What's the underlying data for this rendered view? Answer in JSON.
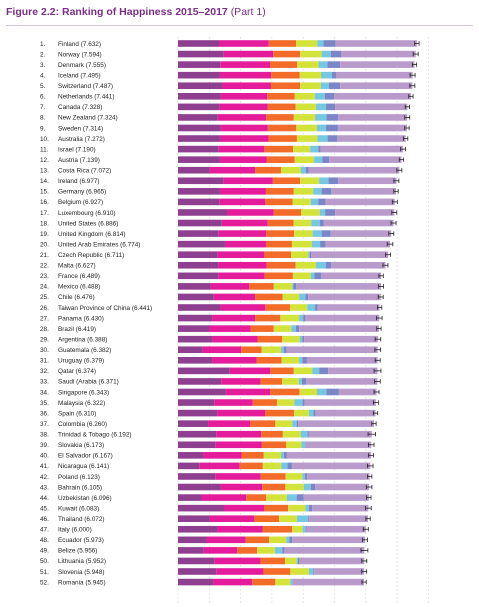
{
  "header": {
    "title": "Figure 2.2: Ranking of Happiness 2015–2017",
    "part": "(Part 1)"
  },
  "colors": {
    "title": "#7a2e85",
    "dystopia_residual": "#b89acb",
    "gdp": "#8e3f8f",
    "social_support": "#e41b9a",
    "life_expectancy": "#f26b29",
    "freedom": "#d3e33a",
    "generosity": "#74c8e4",
    "corruption": "#7b86c6",
    "error_bar": "#222222"
  },
  "chart_data": {
    "type": "bar",
    "orientation": "horizontal",
    "stacked": true,
    "title": "Figure 2.2: Ranking of Happiness 2015–2017",
    "categories": [
      "1. Finland (7.632)",
      "2. Norway (7.594)",
      "3. Denmark (7.555)",
      "4. Iceland (7.495)",
      "5. Switzerland (7.487)",
      "6. Netherlands (7.441)",
      "7. Canada (7.328)",
      "8. New Zealand (7.324)",
      "9. Sweden (7.314)",
      "10. Australia (7.272)",
      "11. Israel (7.190)",
      "12. Austria (7.139)",
      "13. Costa Rica (7.072)",
      "14. Ireland (6.977)",
      "15. Germany (6.965)",
      "16. Belgium (6.927)",
      "17. Luxembourg (6.910)",
      "18. United States (6.886)",
      "19. United Kingdom (6.814)",
      "20. United Arab Emirates (6.774)",
      "21. Czech Republic (6.711)",
      "22. Malta (6.627)",
      "23. France (6.489)",
      "24. Mexico (6.488)",
      "25. Chile (6.476)",
      "26. Taiwan Province of China (6.441)",
      "27. Panama (6.430)",
      "28. Brazil (6.419)",
      "29. Argentina (6.388)",
      "30. Guatemala (6.382)",
      "31. Uruguay (6.379)",
      "32. Qatar (6.374)",
      "33. Saudi (Arabia (6.371)",
      "34. Singapore (6.343)",
      "35. Malaysia (6.322)",
      "36. Spain (6.310)",
      "37. Colombia (6.260)",
      "38. Trinidad & Tobago (6.192)",
      "39. Slovakia (6.173)",
      "40. El Salvador (6.167)",
      "41. Nicaragua (6.141)",
      "42. Poland (6.123)",
      "43. Bahrain (6.105)",
      "44. Uzbekistan (6.096)",
      "45. Kuwait (6.083)",
      "46. Thailand (6.072)",
      "47. Italy (6.000)",
      "48. Ecuador (5.973)",
      "49. Belize (5.956)",
      "50. Lithuania (5.952)",
      "51. Slovenia (5.948)",
      "52. Romania (5.945)"
    ],
    "scores": [
      7.632,
      7.594,
      7.555,
      7.495,
      7.487,
      7.441,
      7.328,
      7.324,
      7.314,
      7.272,
      7.19,
      7.139,
      7.072,
      6.977,
      6.965,
      6.927,
      6.91,
      6.886,
      6.814,
      6.774,
      6.711,
      6.627,
      6.489,
      6.488,
      6.476,
      6.441,
      6.43,
      6.419,
      6.388,
      6.382,
      6.379,
      6.374,
      6.371,
      6.343,
      6.322,
      6.31,
      6.26,
      6.192,
      6.173,
      6.167,
      6.141,
      6.123,
      6.105,
      6.096,
      6.083,
      6.072,
      6.0,
      5.973,
      5.956,
      5.952,
      5.948,
      5.945
    ],
    "series": [
      {
        "key": "gdp",
        "values": [
          1.31,
          1.46,
          1.35,
          1.34,
          1.42,
          1.36,
          1.33,
          1.27,
          1.36,
          1.34,
          1.3,
          1.34,
          1.01,
          1.45,
          1.34,
          1.32,
          1.58,
          1.4,
          1.3,
          1.5,
          1.27,
          1.29,
          1.29,
          1.04,
          1.14,
          1.36,
          1.1,
          0.99,
          1.1,
          0.78,
          1.1,
          1.65,
          1.38,
          1.53,
          1.16,
          1.25,
          0.96,
          1.22,
          1.19,
          0.8,
          0.68,
          1.19,
          1.36,
          0.75,
          1.47,
          1.02,
          1.26,
          0.91,
          0.81,
          1.16,
          1.22,
          1.12
        ]
      },
      {
        "key": "social_support",
        "values": [
          1.59,
          1.58,
          1.59,
          1.64,
          1.55,
          1.49,
          1.53,
          1.55,
          1.51,
          1.55,
          1.46,
          1.5,
          1.46,
          1.58,
          1.47,
          1.47,
          1.48,
          1.47,
          1.52,
          1.31,
          1.49,
          1.54,
          1.48,
          1.23,
          1.33,
          1.43,
          1.37,
          1.33,
          1.44,
          1.24,
          1.41,
          1.3,
          1.26,
          1.41,
          1.23,
          1.53,
          1.35,
          1.44,
          1.49,
          1.23,
          1.29,
          1.45,
          1.33,
          1.43,
          1.29,
          1.42,
          1.44,
          1.25,
          1.08,
          1.48,
          1.51,
          1.25
        ]
      },
      {
        "key": "life_expectancy",
        "values": [
          0.87,
          0.86,
          0.87,
          0.91,
          0.93,
          0.88,
          0.9,
          0.88,
          0.91,
          0.91,
          0.92,
          0.89,
          0.82,
          0.87,
          0.89,
          0.87,
          0.87,
          0.82,
          0.89,
          0.83,
          0.85,
          0.93,
          0.9,
          0.79,
          0.87,
          0.79,
          0.8,
          0.74,
          0.79,
          0.65,
          0.8,
          0.75,
          0.69,
          0.94,
          0.78,
          0.93,
          0.8,
          0.69,
          0.78,
          0.71,
          0.74,
          0.8,
          0.74,
          0.64,
          0.76,
          0.79,
          0.95,
          0.75,
          0.64,
          0.78,
          0.86,
          0.74
        ]
      },
      {
        "key": "freedom",
        "values": [
          0.68,
          0.69,
          0.68,
          0.68,
          0.66,
          0.64,
          0.65,
          0.68,
          0.66,
          0.65,
          0.54,
          0.62,
          0.63,
          0.61,
          0.62,
          0.58,
          0.6,
          0.57,
          0.59,
          0.64,
          0.55,
          0.65,
          0.57,
          0.59,
          0.53,
          0.55,
          0.6,
          0.56,
          0.56,
          0.62,
          0.56,
          0.59,
          0.53,
          0.56,
          0.55,
          0.47,
          0.54,
          0.57,
          0.48,
          0.55,
          0.59,
          0.53,
          0.59,
          0.66,
          0.55,
          0.57,
          0.33,
          0.55,
          0.57,
          0.37,
          0.59,
          0.48
        ]
      },
      {
        "key": "generosity",
        "values": [
          0.2,
          0.29,
          0.28,
          0.35,
          0.26,
          0.32,
          0.32,
          0.36,
          0.29,
          0.33,
          0.26,
          0.26,
          0.16,
          0.3,
          0.27,
          0.24,
          0.17,
          0.27,
          0.29,
          0.26,
          0.05,
          0.31,
          0.12,
          0.04,
          0.2,
          0.25,
          0.13,
          0.15,
          0.08,
          0.09,
          0.1,
          0.22,
          0.1,
          0.3,
          0.26,
          0.15,
          0.14,
          0.22,
          0.12,
          0.09,
          0.2,
          0.08,
          0.22,
          0.31,
          0.11,
          0.36,
          0.1,
          0.1,
          0.23,
          0.04,
          0.14,
          0.06
        ]
      },
      {
        "key": "corruption",
        "values": [
          0.39,
          0.34,
          0.41,
          0.14,
          0.36,
          0.3,
          0.29,
          0.38,
          0.38,
          0.3,
          0.08,
          0.22,
          0.1,
          0.31,
          0.31,
          0.24,
          0.32,
          0.13,
          0.29,
          0.18,
          0.04,
          0.17,
          0.22,
          0.09,
          0.09,
          0.08,
          0.07,
          0.1,
          0.06,
          0.09,
          0.15,
          0.29,
          0.14,
          0.4,
          0.06,
          0.06,
          0.05,
          0.03,
          0.01,
          0.1,
          0.14,
          0.08,
          0.14,
          0.23,
          0.11,
          0.03,
          0.03,
          0.09,
          0.07,
          0.05,
          0.03,
          0.01
        ]
      }
    ],
    "residual_series_key": "dystopia_residual",
    "dystopia_offset": 1.92,
    "ci_half_width": [
      0.07,
      0.08,
      0.07,
      0.08,
      0.08,
      0.07,
      0.07,
      0.08,
      0.07,
      0.07,
      0.08,
      0.07,
      0.08,
      0.08,
      0.07,
      0.08,
      0.08,
      0.08,
      0.08,
      0.09,
      0.08,
      0.08,
      0.07,
      0.08,
      0.08,
      0.07,
      0.09,
      0.07,
      0.09,
      0.09,
      0.08,
      0.11,
      0.09,
      0.08,
      0.08,
      0.07,
      0.07,
      0.12,
      0.09,
      0.08,
      0.09,
      0.07,
      0.09,
      0.07,
      0.09,
      0.07,
      0.08,
      0.08,
      0.11,
      0.08,
      0.08,
      0.07
    ],
    "xlim": [
      0,
      8
    ],
    "grid": true
  }
}
